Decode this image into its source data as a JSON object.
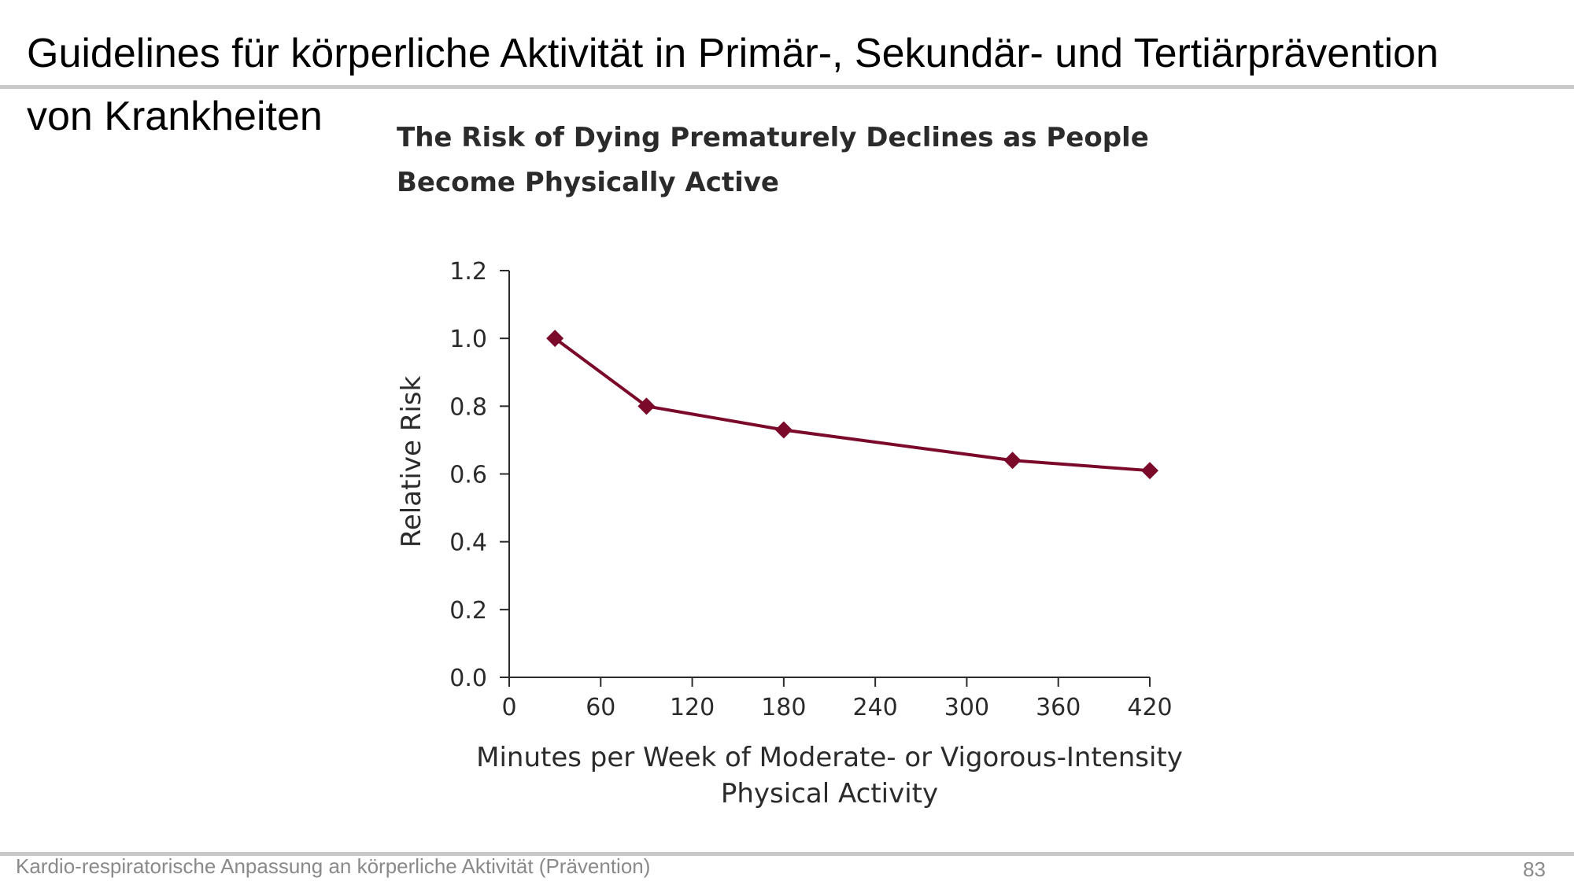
{
  "slide": {
    "title_line1": "Guidelines für körperliche Aktivität in Primär-, Sekundär- und Tertiärprävention",
    "title_line2": "von Krankheiten",
    "footer": "Kardio-respiratorische Anpassung an körperliche Aktivität (Prävention)",
    "page_number": "83"
  },
  "chart_data": {
    "type": "line",
    "title_lines": [
      "The Risk of Dying Prematurely Declines as People",
      "Become Physically Active"
    ],
    "xlabel_lines": [
      "Minutes per Week of Moderate- or Vigorous-Intensity",
      "Physical Activity"
    ],
    "ylabel": "Relative Risk",
    "x_ticks": [
      "0",
      "60",
      "120",
      "180",
      "240",
      "300",
      "360",
      "420"
    ],
    "y_ticks": [
      "0.0",
      "0.2",
      "0.4",
      "0.6",
      "0.8",
      "1.0",
      "1.2"
    ],
    "xlim": [
      0,
      420
    ],
    "ylim": [
      0,
      1.2
    ],
    "grid": false,
    "series": [
      {
        "x": [
          30,
          90,
          180,
          330,
          420
        ],
        "y": [
          1.0,
          0.8,
          0.73,
          0.64,
          0.61
        ],
        "color": "#7b0a2a",
        "marker": "diamond"
      }
    ]
  }
}
